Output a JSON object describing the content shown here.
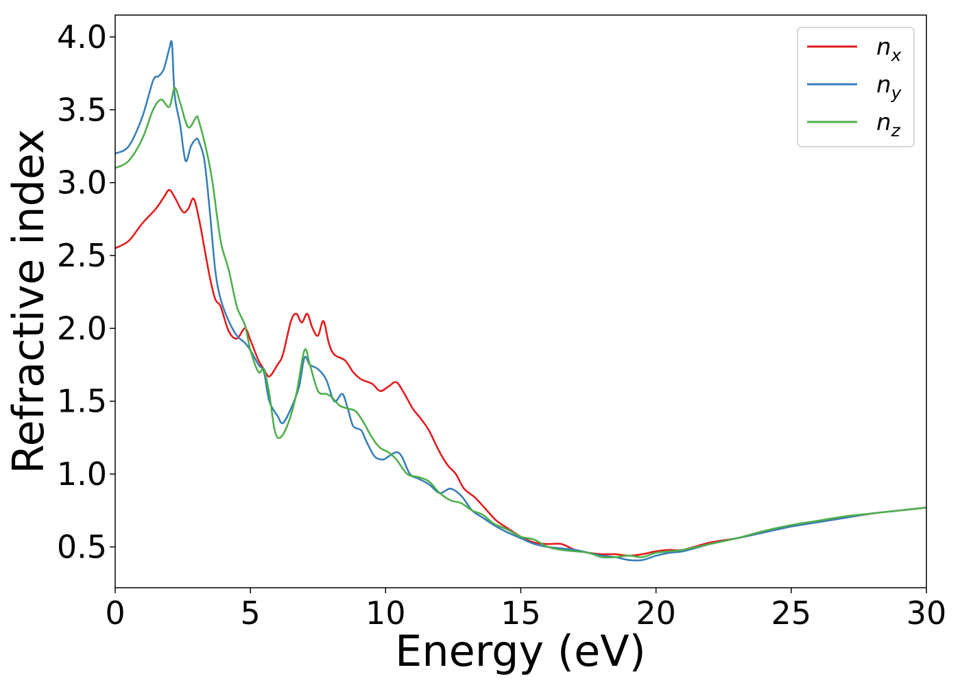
{
  "chart_data": {
    "type": "line",
    "title": "",
    "xlabel": "Energy (eV)",
    "ylabel": "Refractive index",
    "xlim": [
      0,
      30
    ],
    "ylim": [
      0.22,
      4.15
    ],
    "xticks": [
      0,
      5,
      10,
      15,
      20,
      25,
      30
    ],
    "yticks": [
      0.5,
      1.0,
      1.5,
      2.0,
      2.5,
      3.0,
      3.5,
      4.0
    ],
    "xtick_labels": [
      "0",
      "5",
      "10",
      "15",
      "20",
      "25",
      "30"
    ],
    "ytick_labels": [
      "0.5",
      "1.0",
      "1.5",
      "2.0",
      "2.5",
      "3.0",
      "3.5",
      "4.0"
    ],
    "grid": false,
    "legend_position": "top-right",
    "series": [
      {
        "name": "n_x",
        "legend_base": "n",
        "legend_sub": "x",
        "color": "#e41a1c",
        "x": [
          0,
          0.5,
          1.0,
          1.5,
          1.8,
          2.0,
          2.2,
          2.5,
          2.7,
          2.9,
          3.1,
          3.3,
          3.5,
          3.7,
          3.9,
          4.2,
          4.5,
          4.8,
          5.0,
          5.3,
          5.5,
          5.7,
          6.0,
          6.2,
          6.5,
          6.7,
          6.9,
          7.1,
          7.3,
          7.5,
          7.7,
          7.9,
          8.1,
          8.5,
          8.8,
          9.1,
          9.5,
          9.8,
          10.1,
          10.4,
          10.7,
          11.0,
          11.3,
          11.6,
          12.0,
          12.3,
          12.6,
          12.9,
          13.3,
          13.7,
          14.1,
          14.5,
          15.0,
          15.5,
          16.0,
          16.5,
          17.0,
          17.5,
          18.0,
          18.5,
          19.0,
          19.5,
          20.0,
          20.5,
          21.0,
          22.0,
          23.0,
          24.0,
          25.0,
          26.0,
          27.0,
          28.0,
          29.0,
          30.0
        ],
        "y": [
          2.55,
          2.6,
          2.72,
          2.82,
          2.9,
          2.95,
          2.9,
          2.8,
          2.82,
          2.89,
          2.75,
          2.55,
          2.35,
          2.2,
          2.15,
          1.98,
          1.93,
          2.0,
          1.92,
          1.78,
          1.72,
          1.67,
          1.75,
          1.82,
          2.05,
          2.1,
          2.04,
          2.1,
          2.0,
          1.95,
          2.05,
          1.9,
          1.82,
          1.78,
          1.7,
          1.65,
          1.62,
          1.57,
          1.6,
          1.63,
          1.55,
          1.45,
          1.38,
          1.3,
          1.15,
          1.06,
          1.0,
          0.9,
          0.84,
          0.76,
          0.68,
          0.63,
          0.57,
          0.53,
          0.52,
          0.52,
          0.48,
          0.46,
          0.45,
          0.45,
          0.44,
          0.45,
          0.47,
          0.48,
          0.48,
          0.53,
          0.56,
          0.6,
          0.64,
          0.67,
          0.7,
          0.73,
          0.75,
          0.77
        ]
      },
      {
        "name": "n_y",
        "legend_base": "n",
        "legend_sub": "y",
        "color": "#377eb8",
        "x": [
          0,
          0.5,
          1.0,
          1.4,
          1.6,
          1.8,
          2.0,
          2.1,
          2.2,
          2.4,
          2.6,
          2.8,
          3.0,
          3.1,
          3.3,
          3.5,
          3.7,
          3.9,
          4.2,
          4.5,
          4.8,
          5.0,
          5.3,
          5.5,
          5.7,
          6.0,
          6.2,
          6.5,
          6.8,
          7.0,
          7.2,
          7.5,
          7.8,
          8.1,
          8.4,
          8.6,
          8.8,
          9.1,
          9.3,
          9.6,
          9.9,
          10.1,
          10.4,
          10.6,
          10.9,
          11.2,
          11.6,
          12.0,
          12.4,
          12.8,
          13.2,
          13.6,
          14.0,
          14.5,
          15.0,
          15.5,
          16.0,
          16.5,
          17.0,
          17.5,
          18.0,
          18.5,
          19.0,
          19.5,
          20.0,
          20.5,
          21.0,
          22.0,
          23.0,
          24.0,
          25.0,
          26.0,
          27.0,
          28.0,
          29.0,
          30.0
        ],
        "y": [
          3.2,
          3.25,
          3.45,
          3.7,
          3.73,
          3.78,
          3.92,
          3.95,
          3.6,
          3.4,
          3.15,
          3.25,
          3.3,
          3.28,
          3.15,
          2.8,
          2.4,
          2.2,
          2.05,
          1.95,
          1.9,
          1.85,
          1.75,
          1.7,
          1.5,
          1.4,
          1.35,
          1.45,
          1.6,
          1.8,
          1.75,
          1.72,
          1.65,
          1.5,
          1.55,
          1.45,
          1.33,
          1.3,
          1.22,
          1.12,
          1.1,
          1.12,
          1.15,
          1.12,
          1.0,
          0.97,
          0.93,
          0.87,
          0.9,
          0.85,
          0.75,
          0.7,
          0.65,
          0.6,
          0.56,
          0.52,
          0.5,
          0.49,
          0.48,
          0.46,
          0.44,
          0.43,
          0.41,
          0.41,
          0.44,
          0.46,
          0.47,
          0.52,
          0.56,
          0.6,
          0.64,
          0.67,
          0.7,
          0.73,
          0.75,
          0.77
        ]
      },
      {
        "name": "n_z",
        "legend_base": "n",
        "legend_sub": "z",
        "color": "#4daf4a",
        "x": [
          0,
          0.5,
          1.0,
          1.4,
          1.7,
          2.0,
          2.2,
          2.4,
          2.7,
          3.0,
          3.1,
          3.4,
          3.6,
          3.9,
          4.2,
          4.5,
          4.8,
          5.0,
          5.3,
          5.5,
          5.7,
          5.9,
          6.1,
          6.4,
          6.7,
          7.0,
          7.2,
          7.5,
          7.8,
          8.0,
          8.3,
          8.6,
          8.9,
          9.2,
          9.5,
          9.8,
          10.1,
          10.4,
          10.8,
          11.2,
          11.6,
          12.0,
          12.4,
          12.8,
          13.2,
          13.6,
          14.0,
          14.5,
          15.0,
          15.5,
          16.0,
          16.5,
          17.0,
          17.5,
          18.0,
          18.5,
          19.0,
          19.5,
          20.0,
          20.5,
          21.0,
          22.0,
          23.0,
          24.0,
          25.0,
          26.0,
          27.0,
          28.0,
          29.0,
          30.0
        ],
        "y": [
          3.1,
          3.15,
          3.3,
          3.5,
          3.57,
          3.52,
          3.65,
          3.55,
          3.38,
          3.45,
          3.42,
          3.2,
          3.0,
          2.6,
          2.4,
          2.15,
          2.02,
          1.85,
          1.7,
          1.72,
          1.55,
          1.3,
          1.25,
          1.35,
          1.55,
          1.85,
          1.75,
          1.57,
          1.55,
          1.53,
          1.47,
          1.45,
          1.43,
          1.35,
          1.25,
          1.18,
          1.15,
          1.1,
          1.0,
          0.98,
          0.95,
          0.87,
          0.82,
          0.8,
          0.75,
          0.72,
          0.66,
          0.62,
          0.57,
          0.55,
          0.5,
          0.48,
          0.47,
          0.46,
          0.43,
          0.43,
          0.44,
          0.43,
          0.46,
          0.47,
          0.48,
          0.52,
          0.56,
          0.61,
          0.65,
          0.68,
          0.71,
          0.73,
          0.75,
          0.77
        ]
      }
    ]
  }
}
